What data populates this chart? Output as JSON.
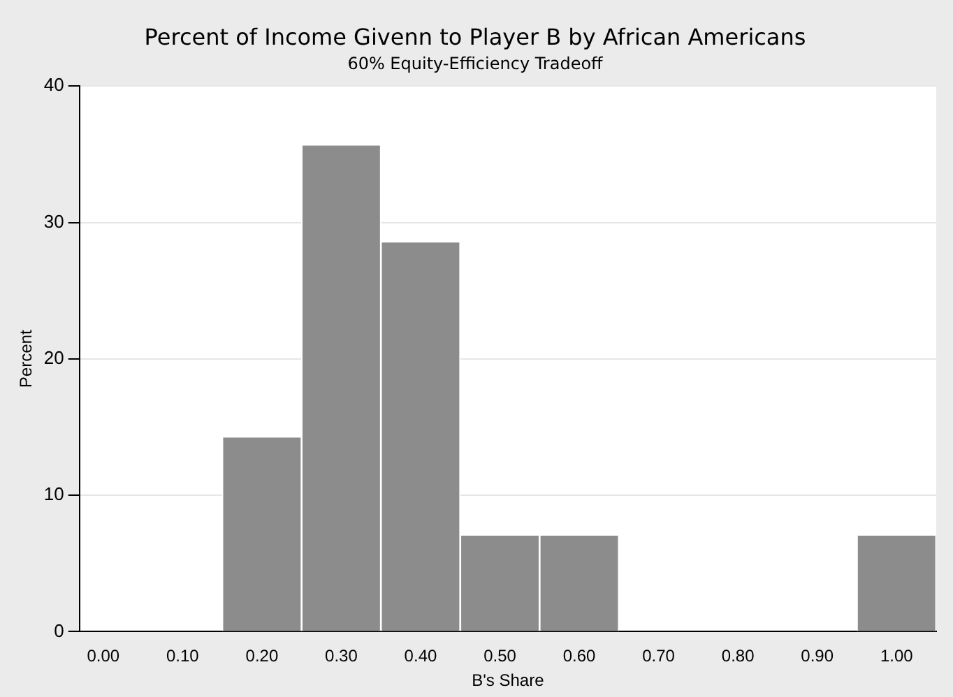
{
  "chart_data": {
    "type": "histogram",
    "title": "Percent of Income Givenn to Player B by African Americans",
    "subtitle": "60% Equity-Efficiency Tradeoff",
    "xlabel": "B's Share",
    "ylabel": "Percent",
    "bins": [
      0.15,
      0.25,
      0.35,
      0.45,
      0.55,
      0.65,
      0.75,
      0.85,
      0.95,
      1.05
    ],
    "values": [
      14.3,
      35.7,
      28.6,
      7.1,
      7.1,
      0,
      0,
      0,
      7.1
    ],
    "color": "#8c8c8c",
    "xlim": [
      -0.03,
      1.05
    ],
    "xticks": [
      {
        "value": 0,
        "label": "0.00"
      },
      {
        "value": 0.1,
        "label": "0.10"
      },
      {
        "value": 0.2,
        "label": "0.20"
      },
      {
        "value": 0.3,
        "label": "0.30"
      },
      {
        "value": 0.4,
        "label": "0.40"
      },
      {
        "value": 0.5,
        "label": "0.50"
      },
      {
        "value": 0.6,
        "label": "0.60"
      },
      {
        "value": 0.7,
        "label": "0.70"
      },
      {
        "value": 0.8,
        "label": "0.80"
      },
      {
        "value": 0.9,
        "label": "0.90"
      },
      {
        "value": 1,
        "label": "1.00"
      }
    ],
    "ylim": [
      0,
      40
    ],
    "yticks": [
      0,
      10,
      20,
      30,
      40
    ],
    "grid": "y"
  }
}
